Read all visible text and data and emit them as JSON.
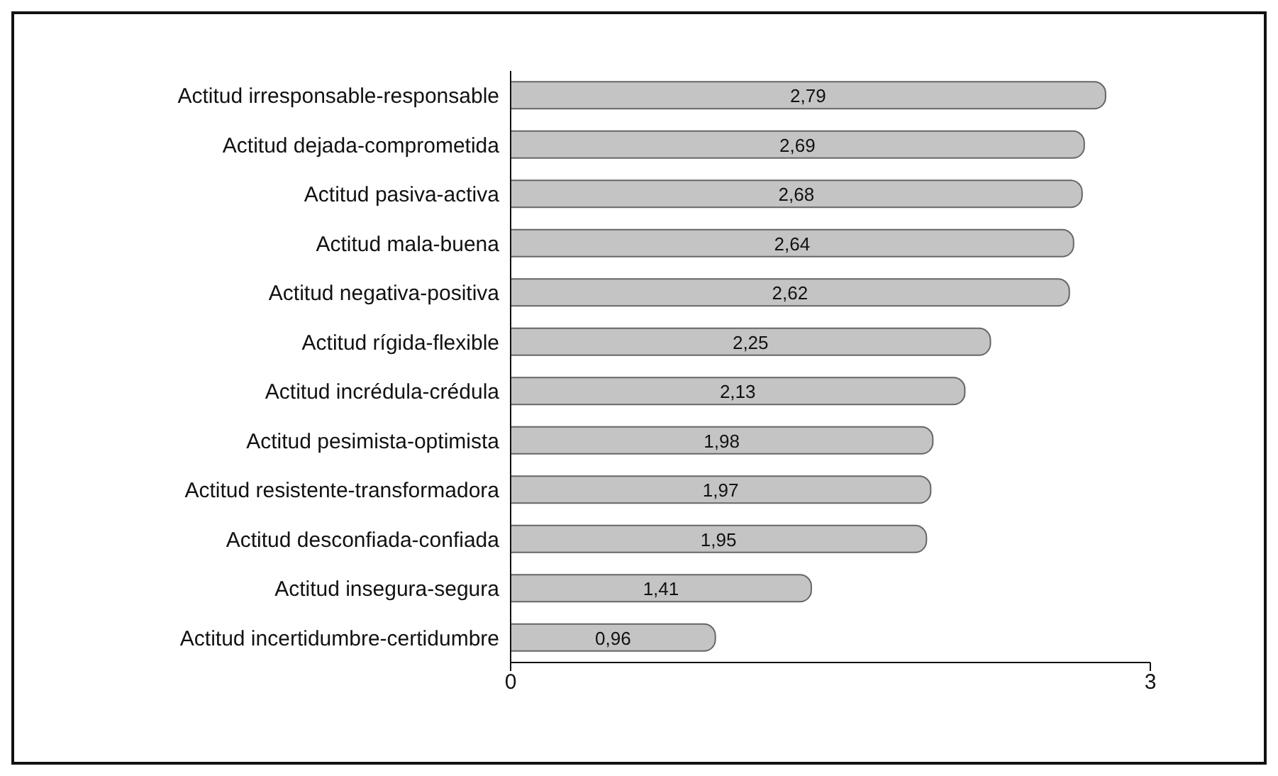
{
  "chart_data": {
    "type": "bar",
    "orientation": "horizontal",
    "categories": [
      "Actitud irresponsable-responsable",
      "Actitud dejada-comprometida",
      "Actitud pasiva-activa",
      "Actitud mala-buena",
      "Actitud negativa-positiva",
      "Actitud rígida-flexible",
      "Actitud incrédula-crédula",
      "Actitud pesimista-optimista",
      "Actitud resistente-transformadora",
      "Actitud desconfiada-confiada",
      "Actitud insegura-segura",
      "Actitud incertidumbre-certidumbre"
    ],
    "values": [
      2.79,
      2.69,
      2.68,
      2.64,
      2.62,
      2.25,
      2.13,
      1.98,
      1.97,
      1.95,
      1.41,
      0.96
    ],
    "value_labels": [
      "2,79",
      "2,69",
      "2,68",
      "2,64",
      "2,62",
      "2,25",
      "2,13",
      "1,98",
      "1,97",
      "1,95",
      "1,41",
      "0,96"
    ],
    "color": "#c4c4c4",
    "xlim": [
      0,
      3
    ],
    "xticks": [
      0,
      3
    ],
    "grid": false,
    "legend": false
  }
}
